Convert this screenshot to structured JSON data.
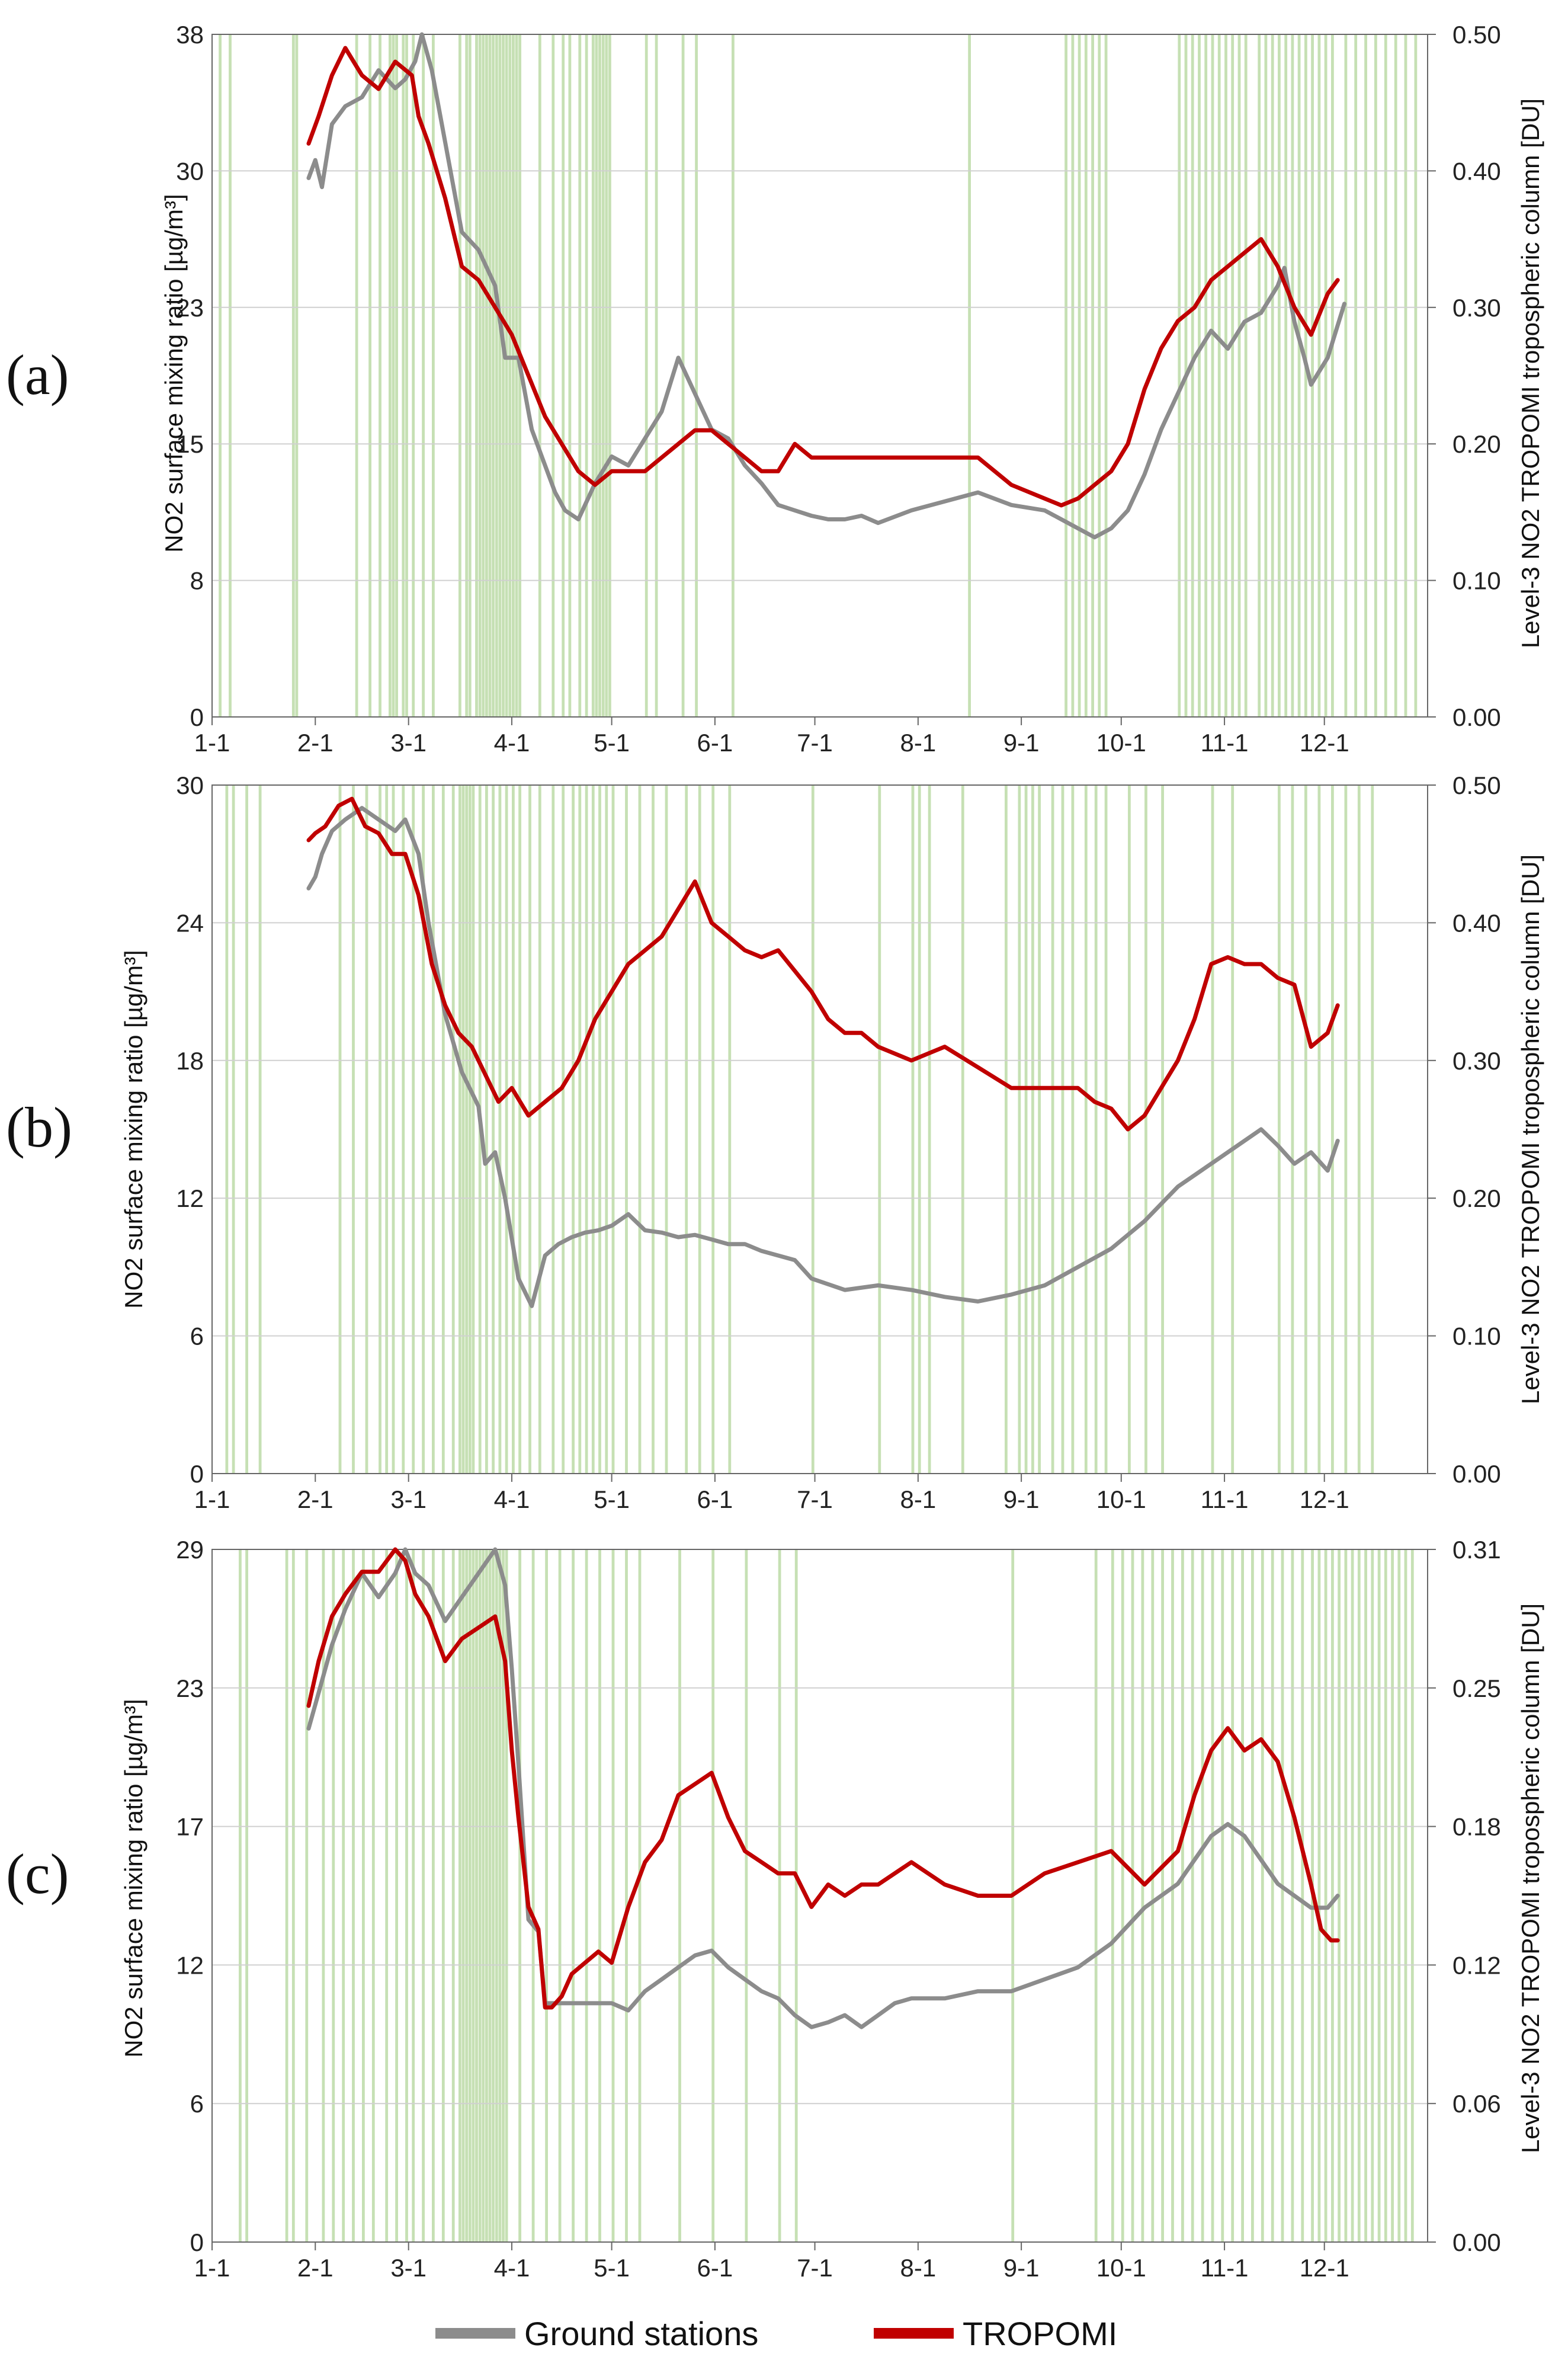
{
  "legend": {
    "ground_label": "Ground stations",
    "tropomi_label": "TROPOMI",
    "ground_color": "#8c8c8c",
    "tropomi_color": "#c00000"
  },
  "colors": {
    "band": "#c6e0b4",
    "grid": "#d0d0d0",
    "axis": "#666666"
  },
  "chart_data": [
    {
      "type": "line",
      "panel_label": "(a)",
      "ylabel_left": "NO2 surface mixing ratio [µg/m³]",
      "ylabel_right": "Level-3 NO2 TROPOMI tropospheric column [DU]",
      "x_ticks": [
        "1-1",
        "2-1",
        "3-1",
        "4-1",
        "5-1",
        "6-1",
        "7-1",
        "8-1",
        "9-1",
        "10-1",
        "11-1",
        "12-1"
      ],
      "x_range": [
        0,
        365
      ],
      "y_left_ticks": [
        "0",
        "8",
        "15",
        "23",
        "30",
        "38"
      ],
      "y_left_range": [
        0,
        38
      ],
      "y_right_ticks": [
        "0.00",
        "0.10",
        "0.20",
        "0.30",
        "0.40",
        "0.50"
      ],
      "y_right_range": [
        0,
        0.5
      ],
      "shaded_days": [
        2,
        5,
        24,
        25,
        43,
        47,
        50,
        53,
        54,
        55,
        57,
        58,
        60,
        63,
        66,
        74,
        76,
        77,
        79,
        80,
        81,
        82,
        83,
        84,
        85,
        86,
        87,
        88,
        89,
        90,
        91,
        92,
        98,
        102,
        105,
        107,
        110,
        112,
        114,
        115,
        116,
        117,
        118,
        119,
        130,
        133,
        141,
        145,
        156,
        227,
        256,
        258,
        260,
        262,
        264,
        266,
        268,
        290,
        292,
        294,
        296,
        298,
        300,
        302,
        304,
        306,
        308,
        310,
        314,
        316,
        318,
        320,
        322,
        324,
        326,
        328,
        330,
        332,
        334,
        336,
        340,
        343,
        346,
        349,
        352,
        355,
        358,
        361
      ],
      "series": [
        {
          "name": "Ground stations",
          "axis": "left",
          "x": [
            29,
            31,
            33,
            36,
            40,
            45,
            50,
            55,
            58,
            61,
            63,
            66,
            70,
            75,
            80,
            85,
            88,
            92,
            96,
            100,
            103,
            106,
            110,
            115,
            120,
            125,
            130,
            135,
            140,
            145,
            150,
            155,
            160,
            165,
            170,
            175,
            180,
            185,
            190,
            195,
            200,
            210,
            220,
            230,
            240,
            250,
            255,
            260,
            265,
            270,
            275,
            280,
            285,
            290,
            295,
            300,
            305,
            310,
            315,
            320,
            322,
            325,
            328,
            330,
            335,
            340
          ],
          "values": [
            30,
            31,
            29.5,
            33,
            34,
            34.5,
            36,
            35,
            35.5,
            36.5,
            38,
            36,
            32,
            27,
            26,
            24,
            20,
            20,
            16,
            14,
            12.5,
            11.5,
            11,
            13,
            14.5,
            14,
            15.5,
            17,
            20,
            18,
            16,
            15.5,
            14,
            13,
            11.8,
            11.5,
            11.2,
            11,
            11,
            11.2,
            10.8,
            11.5,
            12,
            12.5,
            11.8,
            11.5,
            11,
            10.5,
            10,
            10.5,
            11.5,
            13.5,
            16,
            18,
            20,
            21.5,
            20.5,
            22,
            22.5,
            24,
            25,
            22,
            20,
            18.5,
            20,
            23
          ]
        },
        {
          "name": "TROPOMI",
          "axis": "right",
          "x": [
            29,
            32,
            36,
            40,
            45,
            50,
            55,
            60,
            62,
            65,
            70,
            75,
            80,
            85,
            90,
            95,
            100,
            105,
            110,
            115,
            120,
            125,
            130,
            135,
            140,
            145,
            150,
            155,
            160,
            165,
            170,
            175,
            180,
            185,
            190,
            195,
            200,
            210,
            220,
            230,
            240,
            250,
            255,
            260,
            265,
            270,
            275,
            280,
            285,
            290,
            295,
            300,
            305,
            310,
            315,
            320,
            325,
            330,
            335,
            338
          ],
          "values": [
            0.42,
            0.44,
            0.47,
            0.49,
            0.47,
            0.46,
            0.48,
            0.47,
            0.44,
            0.42,
            0.38,
            0.33,
            0.32,
            0.3,
            0.28,
            0.25,
            0.22,
            0.2,
            0.18,
            0.17,
            0.18,
            0.18,
            0.18,
            0.19,
            0.2,
            0.21,
            0.21,
            0.2,
            0.19,
            0.18,
            0.18,
            0.2,
            0.19,
            0.19,
            0.19,
            0.19,
            0.19,
            0.19,
            0.19,
            0.19,
            0.17,
            0.16,
            0.155,
            0.16,
            0.17,
            0.18,
            0.2,
            0.24,
            0.27,
            0.29,
            0.3,
            0.32,
            0.33,
            0.34,
            0.35,
            0.33,
            0.3,
            0.28,
            0.31,
            0.32
          ]
        }
      ]
    },
    {
      "type": "line",
      "panel_label": "(b)",
      "ylabel_left": "NO2 surface mixing ratio [µg/m³]",
      "ylabel_right": "Level-3 NO2 TROPOMI tropospheric column [DU]",
      "x_ticks": [
        "1-1",
        "2-1",
        "3-1",
        "4-1",
        "5-1",
        "6-1",
        "7-1",
        "8-1",
        "9-1",
        "10-1",
        "11-1",
        "12-1"
      ],
      "x_range": [
        0,
        365
      ],
      "y_left_ticks": [
        "0",
        "6",
        "12",
        "18",
        "24",
        "30"
      ],
      "y_left_range": [
        0,
        30
      ],
      "y_right_ticks": [
        "0.00",
        "0.10",
        "0.20",
        "0.30",
        "0.40",
        "0.50"
      ],
      "y_right_range": [
        0,
        0.5
      ],
      "shaded_days": [
        4,
        6,
        10,
        14,
        38,
        42,
        46,
        50,
        52,
        54,
        57,
        60,
        63,
        66,
        69,
        72,
        74,
        75,
        76,
        77,
        78,
        80,
        82,
        84,
        86,
        88,
        90,
        92,
        95,
        98,
        102,
        105,
        108,
        110,
        112,
        114,
        116,
        118,
        120,
        124,
        128,
        132,
        136,
        142,
        146,
        150,
        155,
        180,
        200,
        210,
        212,
        215,
        225,
        238,
        242,
        244,
        246,
        248,
        252,
        255,
        258,
        262,
        265,
        268,
        275,
        280,
        285,
        300,
        306,
        320,
        324,
        328,
        332,
        336,
        340,
        344,
        348
      ],
      "series": [
        {
          "name": "Ground stations",
          "axis": "left",
          "x": [
            29,
            31,
            33,
            36,
            40,
            45,
            50,
            55,
            58,
            62,
            65,
            70,
            75,
            80,
            82,
            85,
            88,
            92,
            96,
            100,
            104,
            108,
            112,
            116,
            120,
            125,
            130,
            135,
            140,
            145,
            150,
            155,
            160,
            165,
            170,
            175,
            180,
            190,
            200,
            210,
            220,
            230,
            240,
            250,
            260,
            270,
            280,
            290,
            300,
            310,
            315,
            320,
            325,
            330,
            335,
            338
          ],
          "values": [
            25.5,
            26,
            27,
            28,
            28.5,
            29,
            28.5,
            28,
            28.5,
            27,
            24,
            20,
            17.5,
            16,
            13.5,
            14,
            12,
            8.5,
            7.3,
            9.5,
            10,
            10.3,
            10.5,
            10.6,
            10.8,
            11.3,
            10.6,
            10.5,
            10.3,
            10.4,
            10.2,
            10,
            10,
            9.7,
            9.5,
            9.3,
            8.5,
            8,
            8.2,
            8,
            7.7,
            7.5,
            7.8,
            8.2,
            9,
            9.8,
            11,
            12.5,
            13.5,
            14.5,
            15,
            14.3,
            13.5,
            14,
            13.2,
            14.5
          ]
        },
        {
          "name": "TROPOMI",
          "axis": "right",
          "x": [
            29,
            31,
            34,
            38,
            42,
            46,
            50,
            54,
            58,
            62,
            66,
            70,
            74,
            78,
            82,
            86,
            90,
            95,
            100,
            105,
            110,
            115,
            120,
            125,
            130,
            135,
            140,
            145,
            150,
            155,
            160,
            165,
            170,
            175,
            180,
            185,
            190,
            195,
            200,
            210,
            220,
            230,
            240,
            250,
            260,
            265,
            270,
            275,
            280,
            285,
            290,
            295,
            300,
            305,
            310,
            315,
            320,
            325,
            330,
            335,
            338
          ],
          "values": [
            0.46,
            0.465,
            0.47,
            0.485,
            0.49,
            0.47,
            0.465,
            0.45,
            0.45,
            0.42,
            0.37,
            0.34,
            0.32,
            0.31,
            0.29,
            0.27,
            0.28,
            0.26,
            0.27,
            0.28,
            0.3,
            0.33,
            0.35,
            0.37,
            0.38,
            0.39,
            0.41,
            0.43,
            0.4,
            0.39,
            0.38,
            0.375,
            0.38,
            0.365,
            0.35,
            0.33,
            0.32,
            0.32,
            0.31,
            0.3,
            0.31,
            0.295,
            0.28,
            0.28,
            0.28,
            0.27,
            0.265,
            0.25,
            0.26,
            0.28,
            0.3,
            0.33,
            0.37,
            0.375,
            0.37,
            0.37,
            0.36,
            0.355,
            0.31,
            0.32,
            0.34
          ]
        }
      ]
    },
    {
      "type": "line",
      "panel_label": "(c)",
      "ylabel_left": "NO2 surface mixing ratio [µg/m³]",
      "ylabel_right": "Level-3 NO2 TROPOMI tropospheric column [DU]",
      "x_ticks": [
        "1-1",
        "2-1",
        "3-1",
        "4-1",
        "5-1",
        "6-1",
        "7-1",
        "8-1",
        "9-1",
        "10-1",
        "11-1",
        "12-1"
      ],
      "x_range": [
        0,
        365
      ],
      "y_left_ticks": [
        "0",
        "6",
        "12",
        "17",
        "23",
        "29"
      ],
      "y_left_range": [
        0,
        29
      ],
      "y_right_ticks": [
        "0.00",
        "0.06",
        "0.12",
        "0.18",
        "0.25",
        "0.31"
      ],
      "y_right_range": [
        0,
        0.31
      ],
      "shaded_days": [
        8,
        10,
        22,
        24,
        28,
        33,
        36,
        39,
        42,
        45,
        48,
        52,
        55,
        58,
        60,
        63,
        66,
        69,
        72,
        74,
        75,
        76,
        77,
        78,
        79,
        80,
        81,
        82,
        83,
        84,
        85,
        86,
        87,
        88,
        92,
        96,
        100,
        104,
        108,
        112,
        116,
        120,
        124,
        128,
        140,
        150,
        160,
        170,
        175,
        240,
        265,
        270,
        273,
        276,
        279,
        282,
        285,
        288,
        291,
        294,
        297,
        300,
        303,
        306,
        309,
        312,
        315,
        318,
        321,
        324,
        327,
        330,
        332,
        334,
        336,
        338,
        340,
        342,
        344,
        346,
        348,
        350,
        352,
        354,
        356,
        358,
        360
      ],
      "series": [
        {
          "name": "Ground stations",
          "axis": "left",
          "x": [
            29,
            32,
            36,
            40,
            45,
            50,
            55,
            58,
            61,
            65,
            70,
            75,
            80,
            85,
            88,
            90,
            92,
            95,
            98,
            100,
            103,
            106,
            110,
            115,
            120,
            125,
            130,
            135,
            140,
            145,
            150,
            155,
            160,
            165,
            170,
            175,
            180,
            185,
            190,
            195,
            200,
            205,
            210,
            220,
            230,
            240,
            250,
            260,
            270,
            280,
            290,
            295,
            300,
            305,
            310,
            315,
            320,
            325,
            330,
            335,
            338
          ],
          "values": [
            21.5,
            23,
            25,
            26.5,
            28,
            27,
            28,
            29,
            28,
            27.5,
            26,
            27,
            28,
            29,
            27.5,
            24,
            20,
            13.5,
            13,
            10,
            10,
            10,
            10,
            10,
            10,
            9.7,
            10.5,
            11,
            11.5,
            12,
            12.2,
            11.5,
            11,
            10.5,
            10.2,
            9.5,
            9,
            9.2,
            9.5,
            9,
            9.5,
            10,
            10.2,
            10.2,
            10.5,
            10.5,
            11,
            11.5,
            12.5,
            14,
            15,
            16,
            17,
            17.5,
            17,
            16,
            15,
            14.5,
            14,
            14,
            14.5
          ]
        },
        {
          "name": "TROPOMI",
          "axis": "right",
          "x": [
            29,
            32,
            36,
            40,
            45,
            50,
            55,
            58,
            61,
            65,
            70,
            75,
            80,
            85,
            88,
            90,
            92,
            95,
            98,
            100,
            102,
            105,
            108,
            112,
            116,
            120,
            125,
            130,
            135,
            140,
            145,
            150,
            155,
            160,
            165,
            170,
            175,
            180,
            185,
            190,
            195,
            200,
            210,
            220,
            230,
            240,
            250,
            260,
            270,
            280,
            290,
            295,
            300,
            305,
            310,
            315,
            320,
            325,
            330,
            333,
            336,
            338
          ],
          "values": [
            0.24,
            0.26,
            0.28,
            0.29,
            0.3,
            0.3,
            0.31,
            0.305,
            0.29,
            0.28,
            0.26,
            0.27,
            0.275,
            0.28,
            0.26,
            0.22,
            0.19,
            0.15,
            0.14,
            0.105,
            0.105,
            0.11,
            0.12,
            0.125,
            0.13,
            0.125,
            0.15,
            0.17,
            0.18,
            0.2,
            0.205,
            0.21,
            0.19,
            0.175,
            0.17,
            0.165,
            0.165,
            0.15,
            0.16,
            0.155,
            0.16,
            0.16,
            0.17,
            0.16,
            0.155,
            0.155,
            0.165,
            0.17,
            0.175,
            0.16,
            0.175,
            0.2,
            0.22,
            0.23,
            0.22,
            0.225,
            0.215,
            0.19,
            0.16,
            0.14,
            0.135,
            0.135
          ]
        }
      ]
    }
  ]
}
